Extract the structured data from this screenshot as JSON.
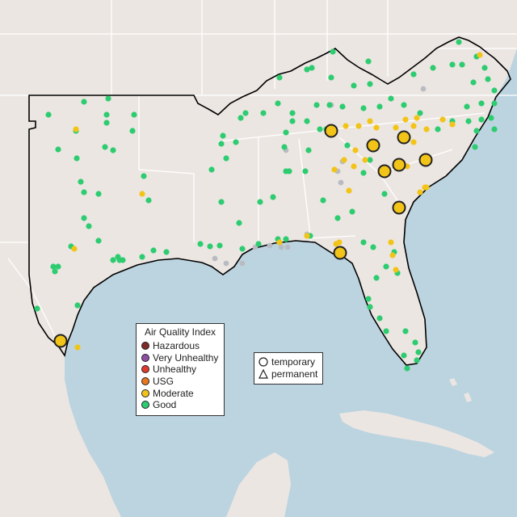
{
  "map": {
    "colors": {
      "water": "#bcd4e0",
      "land": "#ece6e2",
      "border": "#ffffff",
      "region_outline": "#000000",
      "moderate": "#f2c418",
      "good": "#2ecc71",
      "no_data": "#b8bcc2"
    },
    "monitors": [
      {
        "site": "ne-tx-1",
        "category": "Good"
      }
    ],
    "large_monitors_category": "Moderate",
    "large_monitors_type": "temporary"
  },
  "legend": {
    "title": "Air Quality Index",
    "items": [
      {
        "label": "Hazardous",
        "color": "#7e2a28"
      },
      {
        "label": "Very Unhealthy",
        "color": "#8e4fa2"
      },
      {
        "label": "Unhealthy",
        "color": "#e03a2c"
      },
      {
        "label": "USG",
        "color": "#e8771e"
      },
      {
        "label": "Moderate",
        "color": "#f2c418"
      },
      {
        "label": "Good",
        "color": "#2ecc71"
      }
    ]
  },
  "type_legend": {
    "items": [
      {
        "label": "temporary",
        "shape": "circle-icon"
      },
      {
        "label": "permanent",
        "shape": "triangle-icon"
      }
    ]
  }
}
